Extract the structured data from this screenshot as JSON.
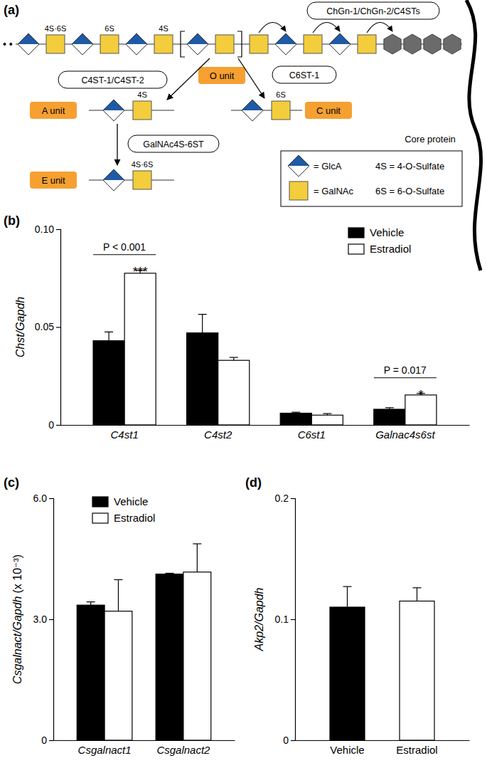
{
  "diagram": {
    "panel_label": "(a)",
    "chain": {
      "leading": "• •",
      "units": [
        {
          "sugar": "GlcA"
        },
        {
          "sugar": "GalNAc",
          "sulfate": "4S·6S"
        },
        {
          "sugar": "GlcA"
        },
        {
          "sugar": "GalNAc",
          "sulfate": "6S"
        },
        {
          "sugar": "GlcA"
        },
        {
          "sugar": "GalNAc",
          "sulfate": "4S"
        },
        {
          "sugar": "GlcA",
          "in_o_unit": true
        },
        {
          "sugar": "GalNAc",
          "in_o_unit": true
        },
        {
          "sugar": "GalNAc"
        },
        {
          "sugar": "GlcA"
        },
        {
          "sugar": "GalNAc"
        },
        {
          "sugar": "GlcA"
        },
        {
          "sugar": "GalNAc"
        }
      ]
    },
    "elongation_enzymes": "ChGn-1/ChGn-2/C4STs",
    "core_protein": "Core protein",
    "o_unit": "O unit",
    "branches": [
      {
        "from": "O unit",
        "enzyme": "C4ST-1/C4ST-2",
        "unit": "A unit",
        "sugars": [
          "GlcA",
          "GalNAc"
        ],
        "sulfate": "4S"
      },
      {
        "from": "O unit",
        "enzyme": "C6ST-1",
        "unit": "C unit",
        "sugars": [
          "GlcA",
          "GalNAc"
        ],
        "sulfate": "6S"
      },
      {
        "from": "A unit",
        "enzyme": "GalNAc4S-6ST",
        "unit": "E unit",
        "sugars": [
          "GlcA",
          "GalNAc"
        ],
        "sulfate": "4S·6S"
      }
    ],
    "legend": {
      "symbols": [
        {
          "sugar": "GlcA",
          "text": "= GlcA"
        },
        {
          "sugar": "GalNAc",
          "text": "= GalNAc"
        }
      ],
      "sulfates": [
        "4S = 4-O-Sulfate",
        "6S = 6-O-Sulfate"
      ]
    }
  },
  "chart_data": [
    {
      "type": "bar",
      "panel_label": "(b)",
      "ylabel": "Chst/Gapdh",
      "categories": [
        "C4st1",
        "C4st2",
        "C6st1",
        "Galnac4s6st"
      ],
      "series": [
        {
          "name": "Vehicle",
          "color": "#000000",
          "values": [
            0.043,
            0.047,
            0.006,
            0.008
          ],
          "errors": [
            0.0045,
            0.0095,
            0.0005,
            0.0008
          ]
        },
        {
          "name": "Estradiol",
          "color": "#ffffff",
          "values": [
            0.0775,
            0.033,
            0.005,
            0.0153
          ],
          "errors": [
            0.0015,
            0.0015,
            0.0008,
            0.0008
          ]
        }
      ],
      "ylim": [
        0,
        0.1
      ],
      "yticks": [
        0,
        0.05,
        {
          "value": 0.1,
          "label": "0.10"
        }
      ],
      "legend": "upper right",
      "annotations": [
        {
          "category": "C4st1",
          "text": "P < 0.001",
          "stars": "***"
        },
        {
          "category": "Galnac4s6st",
          "text": "P = 0.017",
          "stars": "*"
        }
      ]
    },
    {
      "type": "bar",
      "panel_label": "(c)",
      "ylabel": "Csgalnact/Gapdh",
      "ylabel_suffix": "(x 10⁻³)",
      "categories": [
        "Csgalnact1",
        "Csgalnact2"
      ],
      "series": [
        {
          "name": "Vehicle",
          "color": "#000000",
          "values": [
            3.35,
            4.12
          ],
          "errors": [
            0.08,
            0.02
          ]
        },
        {
          "name": "Estradiol",
          "color": "#ffffff",
          "values": [
            3.2,
            4.17
          ],
          "errors": [
            0.78,
            0.7
          ]
        }
      ],
      "ylim": [
        0,
        6
      ],
      "yticks": [
        0,
        {
          "value": 3,
          "label": "3.0"
        },
        {
          "value": 6,
          "label": "6.0"
        }
      ],
      "legend": "upper left"
    },
    {
      "type": "bar",
      "panel_label": "(d)",
      "ylabel": "Akp2/Gapdh",
      "categories": [
        "Vehicle",
        "Estradiol"
      ],
      "values": [
        0.11,
        0.115
      ],
      "errors": [
        0.017,
        0.011
      ],
      "colors": [
        "#000000",
        "#ffffff"
      ],
      "ylim": [
        0,
        0.2
      ],
      "yticks": [
        0,
        0.1,
        0.2
      ]
    }
  ]
}
